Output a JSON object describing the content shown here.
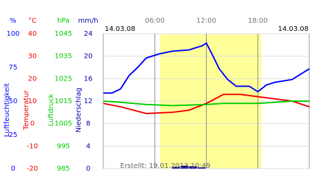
{
  "chart_data": {
    "type": "line",
    "date_start": "14.03.08",
    "date_end": "14.03.08",
    "footer": "Erstellt: 19.01.2013 10:49",
    "xlim": [
      0,
      24
    ],
    "xticks": [
      {
        "value": 6,
        "label": "06:00"
      },
      {
        "value": 12,
        "label": "12:00"
      },
      {
        "value": 18,
        "label": "18:00"
      }
    ],
    "highlight_x": [
      6.6,
      18.4
    ],
    "grid": true,
    "axes": [
      {
        "unit": "%",
        "label": "Luftfeuchtigkeit",
        "color": "#0000ff",
        "ylim": [
          0,
          100
        ],
        "ticks": [
          0,
          25,
          50,
          75,
          100
        ]
      },
      {
        "unit": "°C",
        "label": "Temperatur",
        "color": "#ee0000",
        "ylim": [
          -20,
          40
        ],
        "ticks": [
          -20,
          -10,
          0,
          10,
          20,
          30,
          40
        ]
      },
      {
        "unit": "hPa",
        "label": "Luftdruck",
        "color": "#00cc00",
        "ylim": [
          985,
          1045
        ],
        "ticks": [
          985,
          995,
          1005,
          1015,
          1025,
          1035,
          1045
        ]
      },
      {
        "unit": "mm/h",
        "label": "Niederschlag",
        "color": "#0000aa",
        "ylim": [
          0,
          24
        ],
        "ticks": [
          0,
          4,
          8,
          12,
          16,
          20,
          24
        ]
      }
    ],
    "series": [
      {
        "type": "line",
        "axis": 0,
        "color": "#0000ff",
        "x": [
          0,
          1,
          2,
          3,
          4,
          5,
          6.5,
          8,
          10,
          11.5,
          12,
          12.5,
          13.5,
          14.5,
          15.5,
          17,
          18,
          19,
          20,
          22,
          24
        ],
        "values": [
          56,
          56,
          59,
          69,
          75,
          82,
          85,
          87,
          88,
          91,
          93,
          87,
          74,
          66,
          61,
          61,
          57,
          62,
          64,
          66,
          74
        ]
      },
      {
        "type": "line",
        "axis": 1,
        "color": "#ee0000",
        "x": [
          0,
          2,
          5,
          8,
          10,
          12,
          14,
          16,
          18,
          20,
          22,
          24
        ],
        "values": [
          9,
          7.5,
          4.5,
          5,
          6,
          9,
          13,
          13,
          12,
          11,
          10,
          7.5
        ]
      },
      {
        "type": "line",
        "axis": 2,
        "color": "#00cc00",
        "x": [
          0,
          2,
          5,
          8,
          12,
          14,
          18,
          22,
          24
        ],
        "values": [
          1015,
          1014.5,
          1013.5,
          1013,
          1013.5,
          1014,
          1014,
          1015,
          1015
        ]
      },
      {
        "type": "bar",
        "axis": 3,
        "color": "#0000aa",
        "x": [
          8,
          9,
          10,
          11
        ],
        "values": [
          0.3,
          0.5,
          0.4,
          0.2
        ]
      }
    ]
  }
}
